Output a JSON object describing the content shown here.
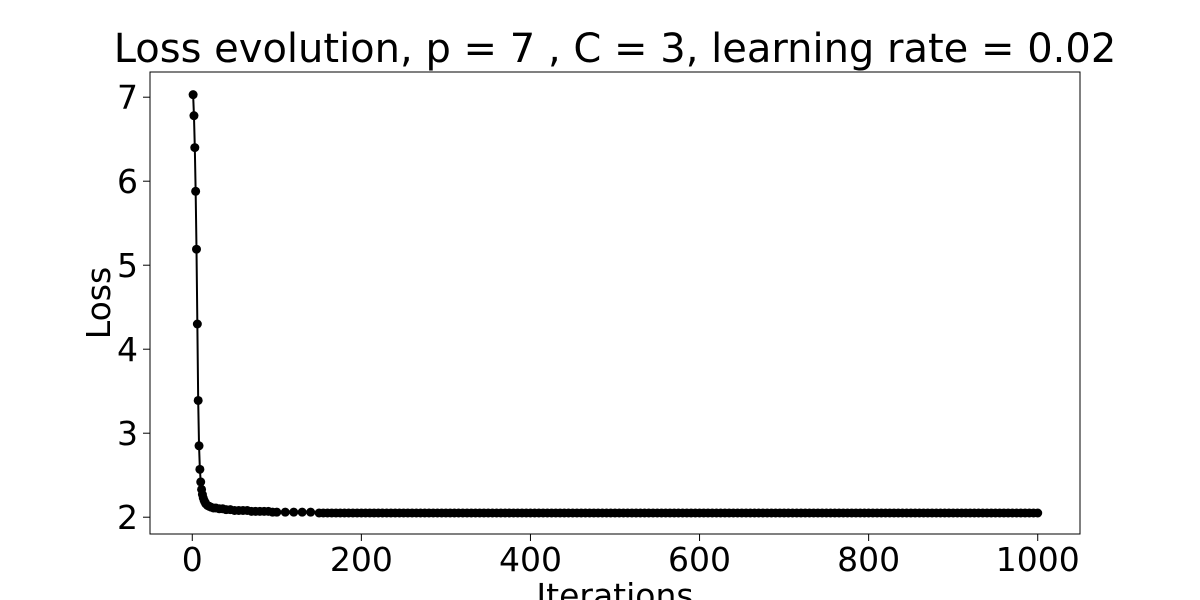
{
  "chart_data": {
    "type": "line",
    "title": "Loss evolution, p = 7 , C = 3, learning rate = 0.02",
    "xlabel": "Iterations",
    "ylabel": "Loss",
    "xlim": [
      -50,
      1050
    ],
    "ylim": [
      1.8,
      7.3
    ],
    "xticks": [
      0,
      200,
      400,
      600,
      800,
      1000
    ],
    "yticks": [
      2,
      3,
      4,
      5,
      6,
      7
    ],
    "grid": false,
    "legend": "none",
    "colors": {
      "line": "#000000",
      "marker": "#000000"
    },
    "series": [
      {
        "x_start": 0,
        "x_end": 1000,
        "x_step": 5,
        "initial_points": [
          [
            1,
            7.03
          ],
          [
            2,
            6.78
          ],
          [
            3,
            6.4
          ],
          [
            4,
            5.88
          ],
          [
            5,
            5.19
          ],
          [
            6,
            4.3
          ],
          [
            7,
            3.39
          ],
          [
            8,
            2.85
          ],
          [
            9,
            2.57
          ],
          [
            10,
            2.42
          ],
          [
            11,
            2.33
          ],
          [
            12,
            2.27
          ],
          [
            13,
            2.23
          ],
          [
            14,
            2.2
          ],
          [
            15,
            2.18
          ],
          [
            16,
            2.16
          ],
          [
            18,
            2.14
          ],
          [
            20,
            2.13
          ],
          [
            22,
            2.12
          ],
          [
            25,
            2.11
          ],
          [
            28,
            2.11
          ],
          [
            32,
            2.1
          ],
          [
            36,
            2.1
          ],
          [
            40,
            2.09
          ],
          [
            45,
            2.09
          ],
          [
            50,
            2.08
          ],
          [
            55,
            2.08
          ],
          [
            60,
            2.08
          ],
          [
            65,
            2.08
          ],
          [
            70,
            2.07
          ],
          [
            75,
            2.07
          ],
          [
            80,
            2.07
          ],
          [
            85,
            2.07
          ],
          [
            90,
            2.07
          ],
          [
            95,
            2.06
          ],
          [
            100,
            2.06
          ],
          [
            110,
            2.06
          ],
          [
            120,
            2.06
          ],
          [
            130,
            2.06
          ],
          [
            140,
            2.06
          ],
          [
            150,
            2.05
          ]
        ],
        "plateau_value": 2.05
      }
    ]
  }
}
